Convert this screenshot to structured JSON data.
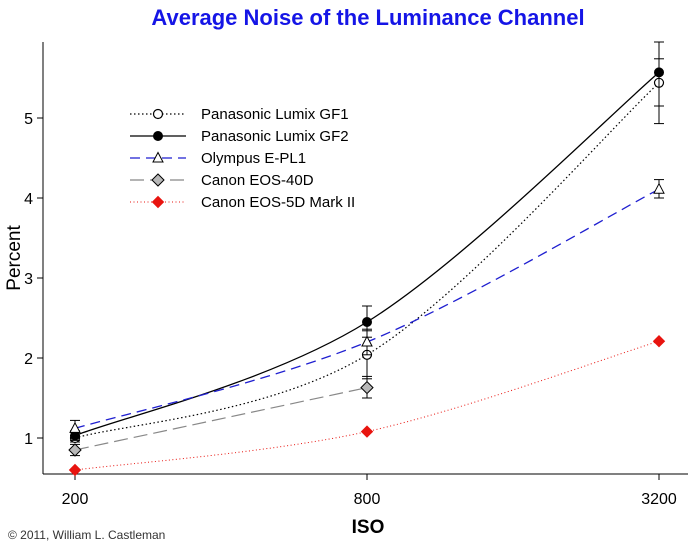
{
  "chart_data": {
    "type": "line",
    "title": "Average Noise of the Luminance Channel",
    "xlabel": "ISO",
    "ylabel": "Percent",
    "x_scale": "log",
    "x": [
      200,
      800,
      3200
    ],
    "x_ticks": [
      "200",
      "800",
      "3200"
    ],
    "y_ticks": [
      "1",
      "2",
      "3",
      "4",
      "5"
    ],
    "ylim": [
      0.55,
      5.95
    ],
    "legend_position": "top-left",
    "grid": false,
    "series": [
      {
        "name": "Panasonic Lumix GF1",
        "values": [
          1.0,
          2.04,
          5.44
        ],
        "color": "#000000",
        "line": "dotted",
        "marker": "circle-open",
        "error": [
          [
            0.95,
            1.07
          ],
          [
            1.74,
            2.34
          ],
          [
            5.15,
            5.74
          ]
        ]
      },
      {
        "name": "Panasonic Lumix GF2",
        "values": [
          1.03,
          2.45,
          5.57
        ],
        "color": "#000000",
        "line": "solid",
        "marker": "circle-filled",
        "error": [
          [
            0.97,
            1.09
          ],
          [
            2.26,
            2.65
          ],
          [
            4.93,
            5.95
          ]
        ]
      },
      {
        "name": "Olympus E-PL1",
        "values": [
          1.12,
          2.2,
          4.11
        ],
        "color": "#1f1fd0",
        "line": "dashed",
        "marker": "triangle-open",
        "error": [
          [
            1.03,
            1.22
          ],
          [
            2.04,
            2.36
          ],
          [
            4.0,
            4.23
          ]
        ]
      },
      {
        "name": "Canon EOS-40D",
        "values": [
          0.85,
          1.63,
          null
        ],
        "color": "#888888",
        "line": "longdash",
        "marker": "diamond-grey",
        "error": [
          [
            0.78,
            0.92
          ],
          [
            1.5,
            1.77
          ],
          null
        ]
      },
      {
        "name": "Canon EOS-5D Mark II",
        "values": [
          0.6,
          1.08,
          2.21
        ],
        "color": "#e8140f",
        "line": "dotted-fine",
        "marker": "diamond-red",
        "error": null
      }
    ]
  },
  "footer": {
    "copyright": "© 2011, William L. Castleman"
  }
}
